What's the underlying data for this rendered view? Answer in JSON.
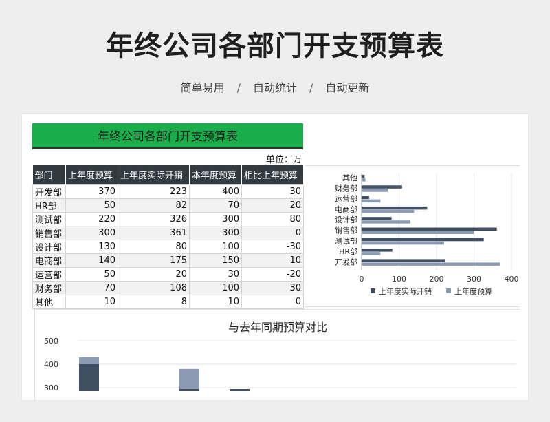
{
  "header": {
    "title": "年终公司各部门开支预算表",
    "tags": [
      "简单易用",
      "自动统计",
      "自动更新"
    ],
    "separator": "/"
  },
  "sheet": {
    "banner": "年终公司各部门开支预算表",
    "unit": "单位：万",
    "columns": [
      "部门",
      "上年度预算",
      "上年度实际开销",
      "本年度预算",
      "相比上年预算"
    ],
    "rows": [
      [
        "开发部",
        "370",
        "223",
        "400",
        "30"
      ],
      [
        "HR部",
        "50",
        "82",
        "70",
        "20"
      ],
      [
        "测试部",
        "220",
        "326",
        "300",
        "80"
      ],
      [
        "销售部",
        "300",
        "361",
        "300",
        "0"
      ],
      [
        "设计部",
        "130",
        "80",
        "100",
        "-30"
      ],
      [
        "电商部",
        "140",
        "175",
        "150",
        "10"
      ],
      [
        "运营部",
        "50",
        "20",
        "30",
        "-20"
      ],
      [
        "财务部",
        "70",
        "108",
        "100",
        "30"
      ],
      [
        "其他",
        "10",
        "8",
        "10",
        "0"
      ]
    ]
  },
  "chart_data": [
    {
      "type": "bar",
      "orientation": "horizontal",
      "categories": [
        "其他",
        "财务部",
        "运营部",
        "电商部",
        "设计部",
        "销售部",
        "测试部",
        "HR部",
        "开发部"
      ],
      "series": [
        {
          "name": "上年度实际开销",
          "values": [
            8,
            108,
            20,
            175,
            80,
            361,
            326,
            82,
            223
          ]
        },
        {
          "name": "上年度预算",
          "values": [
            10,
            70,
            50,
            140,
            130,
            300,
            220,
            50,
            370
          ]
        }
      ],
      "xlim": [
        0,
        400
      ],
      "xticks": [
        "0",
        "100",
        "200",
        "300",
        "400"
      ],
      "grid": true,
      "legend": "bottom",
      "colors": [
        "#414f63",
        "#8b9bb3"
      ]
    },
    {
      "type": "bar",
      "orientation": "vertical",
      "stacked": true,
      "title": "与去年同期预算对比",
      "yticks": [
        "500",
        "400",
        "300"
      ],
      "ylim": [
        290,
        520
      ],
      "visible_stacks": [
        {
          "position": 0,
          "dark": 400,
          "light": 430
        },
        {
          "position": 2,
          "dark": 300,
          "light": 380
        },
        {
          "position": 3,
          "dark": 300,
          "light": 300
        }
      ],
      "colors": [
        "#414f63",
        "#8b9bb3"
      ],
      "grid": true
    }
  ]
}
